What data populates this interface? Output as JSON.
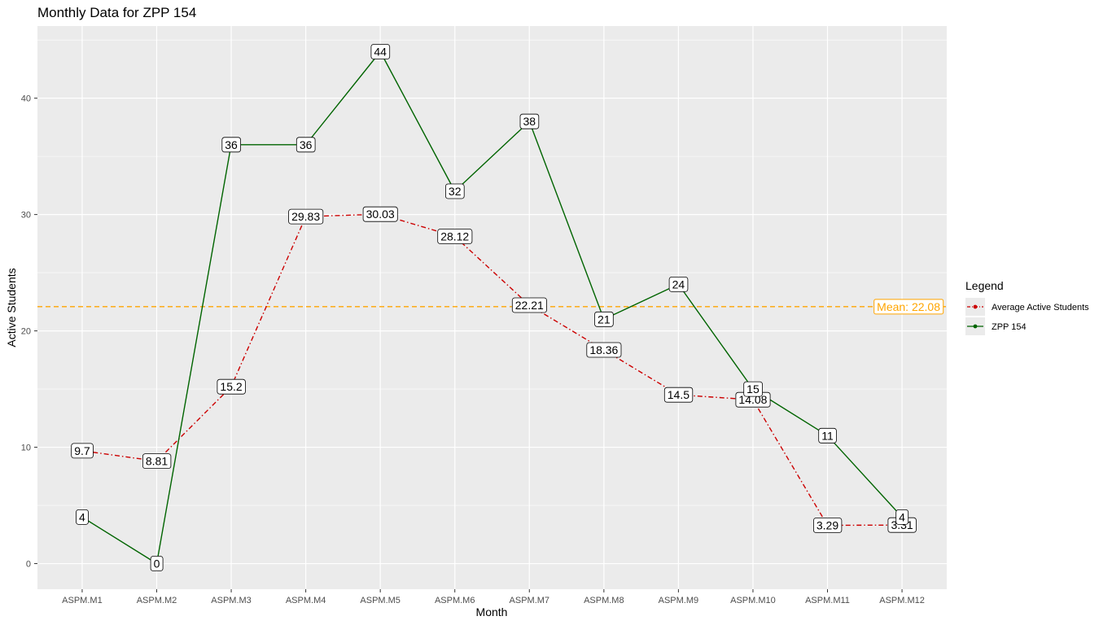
{
  "chart_data": {
    "type": "line",
    "title": "Monthly Data for ZPP 154",
    "xlabel": "Month",
    "ylabel": "Active Students",
    "categories": [
      "ASPM.M1",
      "ASPM.M2",
      "ASPM.M3",
      "ASPM.M4",
      "ASPM.M5",
      "ASPM.M6",
      "ASPM.M7",
      "ASPM.M8",
      "ASPM.M9",
      "ASPM.M10",
      "ASPM.M11",
      "ASPM.M12"
    ],
    "ylim": [
      -2.2,
      46.2
    ],
    "yticks": [
      0,
      10,
      20,
      30,
      40
    ],
    "grid": true,
    "legend": {
      "title": "Legend",
      "position": "right"
    },
    "series": [
      {
        "name": "Average Active Students",
        "color": "#cc0000",
        "linestyle": "dashdot",
        "values": [
          9.7,
          8.81,
          15.2,
          29.83,
          30.03,
          28.12,
          22.21,
          18.36,
          14.5,
          14.08,
          3.29,
          3.31
        ],
        "labels": [
          "9.7",
          "8.81",
          "15.2",
          "29.83",
          "30.03",
          "28.12",
          "22.21",
          "18.36",
          "14.5",
          "14.08",
          "3.29",
          "3.31"
        ]
      },
      {
        "name": "ZPP 154",
        "color": "#006400",
        "linestyle": "solid",
        "values": [
          4,
          0,
          36,
          36,
          44,
          32,
          38,
          21,
          24,
          15,
          11,
          4
        ],
        "labels": [
          "4",
          "0",
          "36",
          "36",
          "44",
          "32",
          "38",
          "21",
          "24",
          "15",
          "11",
          "4"
        ]
      }
    ],
    "mean_line": {
      "value": 22.08,
      "label": "Mean: 22.08",
      "color": "#ffa500"
    }
  }
}
